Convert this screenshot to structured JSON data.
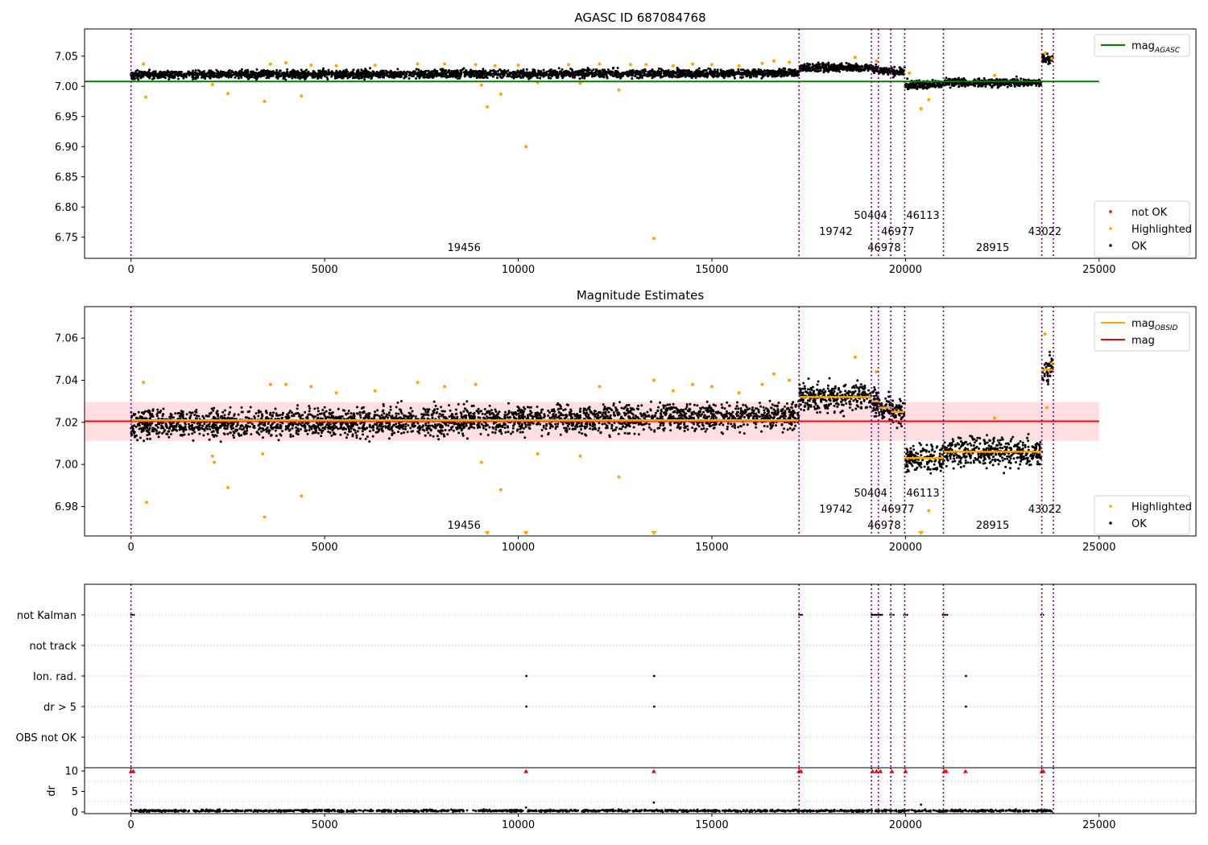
{
  "colors": {
    "ok": "#000000",
    "highlighted": "#ffa500",
    "not_ok": "#ff0000",
    "agasc_line": "#008000",
    "mag_line": "#ff0000",
    "mag_band": "#ffdfe2",
    "obsid_line": "#ffa500",
    "obs_boundary": "#800080",
    "grid": "#b0b0b0"
  },
  "chart_data": [
    {
      "type": "scatter",
      "title": "AGASC ID 687084768",
      "xlim": [
        -1200,
        27500
      ],
      "ylim": [
        6.715,
        7.095
      ],
      "xticks": [
        0,
        5000,
        10000,
        15000,
        20000,
        25000
      ],
      "yticks": [
        6.75,
        6.8,
        6.85,
        6.9,
        6.95,
        7.0,
        7.05
      ],
      "ytick_labels": [
        "6.75",
        "6.80",
        "6.85",
        "6.90",
        "6.95",
        "7.00",
        "7.05"
      ],
      "mag_agasc": 7.008,
      "mag_agasc_span": [
        -1200,
        25000
      ],
      "legend_top": {
        "position": "top-right",
        "entries": [
          {
            "label": "mag",
            "sub": "AGASC",
            "style": "line",
            "color": "#008000"
          }
        ]
      },
      "legend_bottom": {
        "position": "bottom-right",
        "entries": [
          {
            "label": "not OK",
            "color": "#ff0000"
          },
          {
            "label": "Highlighted",
            "color": "#ffa500"
          },
          {
            "label": "OK",
            "color": "#000000"
          }
        ]
      },
      "highlighted_points": [
        [
          320,
          7.037
        ],
        [
          380,
          6.982
        ],
        [
          2100,
          7.003
        ],
        [
          2500,
          6.988
        ],
        [
          3450,
          6.975
        ],
        [
          3600,
          7.037
        ],
        [
          4000,
          7.039
        ],
        [
          4400,
          6.984
        ],
        [
          4650,
          7.035
        ],
        [
          5300,
          7.034
        ],
        [
          6300,
          7.035
        ],
        [
          7400,
          7.037
        ],
        [
          8100,
          7.037
        ],
        [
          8900,
          7.036
        ],
        [
          9050,
          7.002
        ],
        [
          9200,
          6.966
        ],
        [
          9400,
          7.034
        ],
        [
          9550,
          6.987
        ],
        [
          10000,
          7.035
        ],
        [
          10200,
          6.9
        ],
        [
          10500,
          7.006
        ],
        [
          11300,
          7.036
        ],
        [
          11600,
          7.005
        ],
        [
          12100,
          7.037
        ],
        [
          12600,
          6.994
        ],
        [
          12900,
          7.036
        ],
        [
          13300,
          7.036
        ],
        [
          13500,
          6.748
        ],
        [
          14000,
          7.034
        ],
        [
          14500,
          7.037
        ],
        [
          15000,
          7.036
        ],
        [
          15700,
          7.034
        ],
        [
          16300,
          7.038
        ],
        [
          16600,
          7.042
        ],
        [
          17000,
          7.04
        ],
        [
          18700,
          7.048
        ],
        [
          19250,
          7.042
        ],
        [
          20100,
          7.022
        ],
        [
          20400,
          6.963
        ],
        [
          20600,
          6.978
        ],
        [
          22300,
          7.018
        ],
        [
          23600,
          7.055
        ],
        [
          23780,
          7.046
        ]
      ],
      "ok_segments": [
        {
          "obsid": "19456",
          "x": [
            0,
            17250
          ],
          "y0": 7.019,
          "y1": 7.022,
          "spread": 0.006
        },
        {
          "obsid": "19742",
          "x": [
            17260,
            19120
          ],
          "y0": 7.031,
          "y1": 7.031,
          "spread": 0.006
        },
        {
          "obsid": "50404",
          "x": [
            19130,
            19300
          ],
          "y0": 7.029,
          "y1": 7.029,
          "spread": 0.006
        },
        {
          "obsid": "46978",
          "x": [
            19310,
            19620
          ],
          "y0": 7.026,
          "y1": 7.026,
          "spread": 0.006
        },
        {
          "obsid": "46977",
          "x": [
            19630,
            19980
          ],
          "y0": 7.024,
          "y1": 7.024,
          "spread": 0.006
        },
        {
          "obsid": "46113",
          "x": [
            19990,
            20980
          ],
          "y0": 7.003,
          "y1": 7.003,
          "spread": 0.006
        },
        {
          "obsid": "28915",
          "x": [
            20990,
            23520
          ],
          "y0": 7.006,
          "y1": 7.006,
          "spread": 0.006
        },
        {
          "obsid": "43022",
          "x": [
            23530,
            23800
          ],
          "y0": 7.045,
          "y1": 7.045,
          "spread": 0.007
        }
      ],
      "obs_boundaries": [
        0,
        17250,
        19120,
        19300,
        19620,
        19980,
        20980,
        23520,
        23820
      ],
      "obsid_labels": [
        {
          "text": "19456",
          "x": 8600,
          "row": 2
        },
        {
          "text": "19742",
          "x": 18200,
          "row": 1
        },
        {
          "text": "50404",
          "x": 19100,
          "row": 0
        },
        {
          "text": "46978",
          "x": 19450,
          "row": 2
        },
        {
          "text": "46977",
          "x": 19800,
          "row": 1
        },
        {
          "text": "46113",
          "x": 20450,
          "row": 0
        },
        {
          "text": "28915",
          "x": 22250,
          "row": 2
        },
        {
          "text": "43022",
          "x": 23600,
          "row": 1
        }
      ]
    },
    {
      "type": "scatter",
      "title": "Magnitude Estimates",
      "xlim": [
        -1200,
        27500
      ],
      "ylim": [
        6.966,
        7.075
      ],
      "xticks": [
        0,
        5000,
        10000,
        15000,
        20000,
        25000
      ],
      "yticks": [
        6.98,
        7.0,
        7.02,
        7.04,
        7.06
      ],
      "ytick_labels": [
        "6.98",
        "7.00",
        "7.02",
        "7.04",
        "7.06"
      ],
      "mag": 7.0205,
      "mag_band": [
        7.0112,
        7.0297
      ],
      "mag_span": [
        -1200,
        25000
      ],
      "legend_top": {
        "position": "top-right",
        "entries": [
          {
            "label": "mag",
            "sub": "OBSID",
            "style": "line",
            "color": "#ffa500"
          },
          {
            "label": "mag",
            "style": "line",
            "color": "#ff0000"
          }
        ]
      },
      "legend_bottom": {
        "position": "bottom-right",
        "entries": [
          {
            "label": "Highlighted",
            "color": "#ffa500"
          },
          {
            "label": "OK",
            "color": "#000000"
          }
        ]
      },
      "mag_obsid": [
        {
          "x": [
            0,
            17250
          ],
          "y": 7.021
        },
        {
          "x": [
            17260,
            19120
          ],
          "y": 7.032
        },
        {
          "x": [
            19130,
            19300
          ],
          "y": 7.03
        },
        {
          "x": [
            19310,
            19620
          ],
          "y": 7.027
        },
        {
          "x": [
            19630,
            19980
          ],
          "y": 7.025
        },
        {
          "x": [
            19990,
            20980
          ],
          "y": 7.003
        },
        {
          "x": [
            20990,
            23520
          ],
          "y": 7.006
        },
        {
          "x": [
            23530,
            23800
          ],
          "y": 7.045
        }
      ],
      "ok_segments": [
        {
          "obsid": "19456",
          "x": [
            0,
            17250
          ],
          "y0": 7.019,
          "y1": 7.023,
          "spread": 0.006
        },
        {
          "obsid": "19742",
          "x": [
            17260,
            19120
          ],
          "y0": 7.032,
          "y1": 7.032,
          "spread": 0.006
        },
        {
          "obsid": "50404",
          "x": [
            19130,
            19300
          ],
          "y0": 7.03,
          "y1": 7.03,
          "spread": 0.006
        },
        {
          "obsid": "46978",
          "x": [
            19310,
            19620
          ],
          "y0": 7.027,
          "y1": 7.027,
          "spread": 0.006
        },
        {
          "obsid": "46977",
          "x": [
            19630,
            19980
          ],
          "y0": 7.025,
          "y1": 7.025,
          "spread": 0.006
        },
        {
          "obsid": "46113",
          "x": [
            19990,
            20980
          ],
          "y0": 7.003,
          "y1": 7.003,
          "spread": 0.006
        },
        {
          "obsid": "28915",
          "x": [
            20990,
            23520
          ],
          "y0": 7.006,
          "y1": 7.006,
          "spread": 0.006
        },
        {
          "obsid": "43022",
          "x": [
            23530,
            23800
          ],
          "y0": 7.045,
          "y1": 7.045,
          "spread": 0.007
        }
      ],
      "highlighted_points": [
        [
          320,
          7.039
        ],
        [
          400,
          6.982
        ],
        [
          2100,
          7.004
        ],
        [
          2150,
          7.001
        ],
        [
          2500,
          6.989
        ],
        [
          3400,
          7.005
        ],
        [
          3450,
          6.975
        ],
        [
          3600,
          7.038
        ],
        [
          4000,
          7.038
        ],
        [
          4400,
          6.985
        ],
        [
          4650,
          7.037
        ],
        [
          5300,
          7.034
        ],
        [
          6300,
          7.035
        ],
        [
          7400,
          7.039
        ],
        [
          8100,
          7.037
        ],
        [
          8900,
          7.038
        ],
        [
          9050,
          7.001
        ],
        [
          9550,
          6.988
        ],
        [
          10500,
          7.005
        ],
        [
          11600,
          7.004
        ],
        [
          12100,
          7.037
        ],
        [
          12600,
          6.994
        ],
        [
          13500,
          7.04
        ],
        [
          14000,
          7.035
        ],
        [
          14500,
          7.038
        ],
        [
          15000,
          7.037
        ],
        [
          15700,
          7.034
        ],
        [
          16300,
          7.038
        ],
        [
          16600,
          7.043
        ],
        [
          17000,
          7.04
        ],
        [
          18700,
          7.051
        ],
        [
          19250,
          7.044
        ],
        [
          20600,
          6.978
        ],
        [
          22300,
          7.022
        ],
        [
          23600,
          7.062
        ],
        [
          23780,
          7.048
        ],
        [
          23650,
          7.027
        ]
      ],
      "off_scale_low": [
        9200,
        10200,
        13500,
        20400
      ],
      "obs_boundaries": [
        0,
        17250,
        19120,
        19300,
        19620,
        19980,
        20980,
        23520,
        23820
      ],
      "obsid_labels": [
        {
          "text": "19456",
          "x": 8600,
          "row": 2
        },
        {
          "text": "19742",
          "x": 18200,
          "row": 1
        },
        {
          "text": "50404",
          "x": 19100,
          "row": 0
        },
        {
          "text": "46978",
          "x": 19450,
          "row": 2
        },
        {
          "text": "46977",
          "x": 19800,
          "row": 1
        },
        {
          "text": "46113",
          "x": 20450,
          "row": 0
        },
        {
          "text": "28915",
          "x": 22250,
          "row": 2
        },
        {
          "text": "43022",
          "x": 23600,
          "row": 1
        }
      ]
    },
    {
      "type": "scatter",
      "xlim": [
        -1200,
        27500
      ],
      "xticks": [
        0,
        5000,
        10000,
        15000,
        20000,
        25000
      ],
      "flag_rows": [
        "not Kalman",
        "not track",
        "Ion. rad.",
        "dr > 5",
        "OBS not OK"
      ],
      "flags": {
        "not Kalman": [
          [
            0,
            80
          ],
          [
            17250,
            17330
          ],
          [
            19120,
            19400
          ],
          [
            19600,
            19700
          ],
          [
            19960,
            20050
          ],
          [
            20960,
            21080
          ],
          [
            23500,
            23560
          ]
        ],
        "not track": [],
        "Ion. rad.": [
          [
            10200,
            10220
          ],
          [
            13500,
            13520
          ],
          [
            21550,
            21570
          ]
        ],
        "dr > 5": [
          [
            10200,
            10220
          ],
          [
            13500,
            13520
          ],
          [
            21550,
            21570
          ]
        ],
        "OBS not OK": []
      },
      "dr_ylabel": "dr",
      "dr_ylim": [
        -0.4,
        10.8
      ],
      "dr_yticks": [
        0,
        5,
        10
      ],
      "dr_typical": 0.3,
      "dr_capped_points": [
        [
          0,
          10
        ],
        [
          60,
          10
        ],
        [
          10200,
          10
        ],
        [
          13500,
          10
        ],
        [
          17250,
          10
        ],
        [
          17300,
          10
        ],
        [
          19150,
          10
        ],
        [
          19250,
          10
        ],
        [
          19350,
          10
        ],
        [
          19650,
          10
        ],
        [
          20000,
          10
        ],
        [
          21000,
          10
        ],
        [
          21050,
          10
        ],
        [
          21550,
          10
        ],
        [
          23520,
          10
        ],
        [
          23560,
          10
        ]
      ],
      "dr_outliers": [
        [
          13500,
          2.3
        ],
        [
          10200,
          1.1
        ],
        [
          20400,
          1.8
        ]
      ],
      "obs_boundaries": [
        0,
        17250,
        19120,
        19300,
        19620,
        19980,
        20980,
        23520,
        23820
      ]
    }
  ]
}
